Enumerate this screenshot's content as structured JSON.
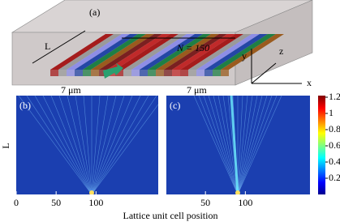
{
  "panel_a": {
    "label": "(a)",
    "n_label": "N = 150",
    "length_label": "L",
    "gap_labels": [
      "7 μm",
      "7 μm"
    ],
    "axes": [
      "y",
      "z",
      "x"
    ]
  },
  "panel_b": {
    "label": "(b)",
    "xlim": [
      0,
      178
    ],
    "xticks": [
      0,
      50,
      100
    ]
  },
  "panel_c": {
    "label": "(c)",
    "xlim": [
      1,
      181
    ],
    "xticks": [
      50,
      100
    ]
  },
  "y_label": "L",
  "x_label": "Lattice unit cell position",
  "colorbar": {
    "lim": [
      0,
      1.22
    ],
    "ticks": [
      1.2,
      1,
      0.8,
      0.6,
      0.4,
      0.2
    ]
  }
}
